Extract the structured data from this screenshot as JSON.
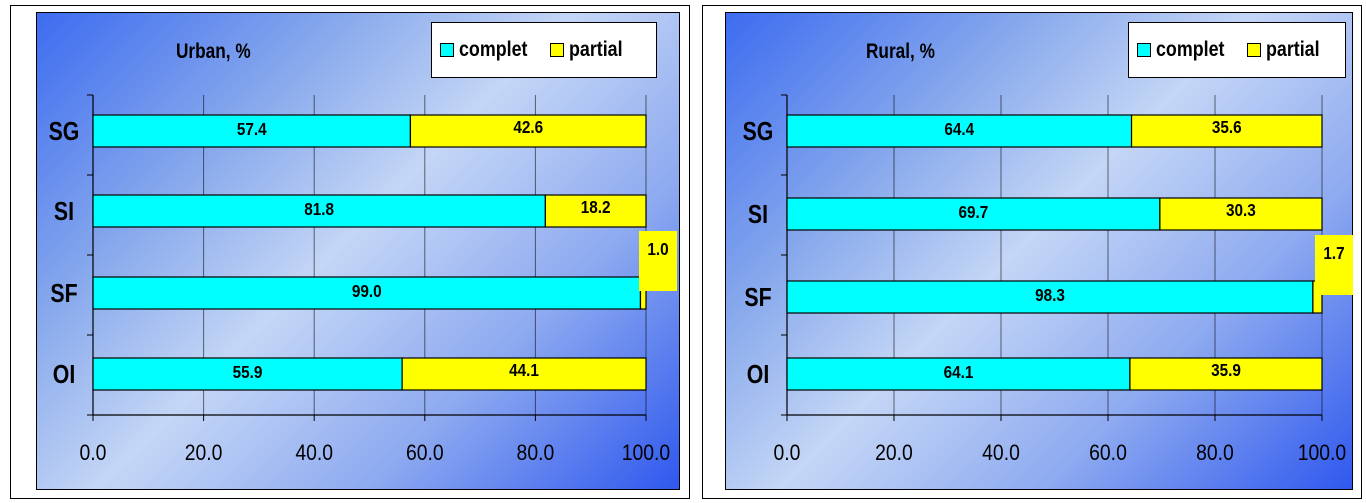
{
  "chart_data": [
    {
      "type": "bar",
      "orientation": "horizontal",
      "stacked": true,
      "title": "Urban, %",
      "categories": [
        "SG",
        "SI",
        "SF",
        "OI"
      ],
      "series": [
        {
          "name": "complet",
          "color": "#00FFFF",
          "values": [
            57.4,
            81.8,
            99.0,
            55.9
          ]
        },
        {
          "name": "partial",
          "color": "#FFFF00",
          "values": [
            42.6,
            18.2,
            1.0,
            44.1
          ]
        }
      ],
      "x_ticks": [
        "0.0",
        "20.0",
        "40.0",
        "60.0",
        "80.0",
        "100.0"
      ],
      "data_labels": {
        "complet": [
          "57.4",
          "81.8",
          "99.0",
          "55.9"
        ],
        "partial": [
          "42.6",
          "18.2",
          "1.0",
          "44.1"
        ]
      },
      "xlim": [
        0,
        100
      ],
      "grid": true,
      "legend_position": "top-right"
    },
    {
      "type": "bar",
      "orientation": "horizontal",
      "stacked": true,
      "title": "Rural, %",
      "categories": [
        "SG",
        "SI",
        "SF",
        "OI"
      ],
      "series": [
        {
          "name": "complet",
          "color": "#00FFFF",
          "values": [
            64.4,
            69.7,
            98.3,
            64.1
          ]
        },
        {
          "name": "partial",
          "color": "#FFFF00",
          "values": [
            35.6,
            30.3,
            1.7,
            35.9
          ]
        }
      ],
      "x_ticks": [
        "0.0",
        "20.0",
        "40.0",
        "60.0",
        "80.0",
        "100.0"
      ],
      "data_labels": {
        "complet": [
          "64.4",
          "69.7",
          "98.3",
          "64.1"
        ],
        "partial": [
          "35.6",
          "30.3",
          "1.7",
          "35.9"
        ]
      },
      "xlim": [
        0,
        100
      ],
      "grid": true,
      "legend_position": "top-right"
    }
  ]
}
